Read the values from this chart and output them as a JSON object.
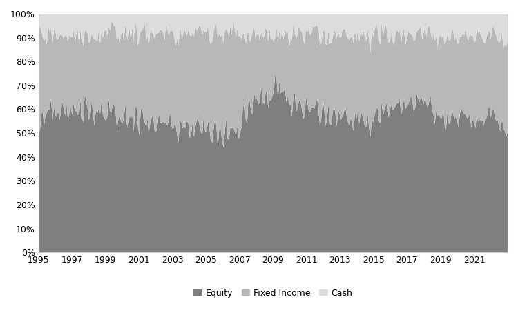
{
  "colors": {
    "equity": "#7f7f7f",
    "fixed_income": "#b8b8b8",
    "cash": "#dcdcdc"
  },
  "legend_labels": [
    "Equity",
    "Fixed Income",
    "Cash"
  ],
  "background_color": "#ffffff",
  "start_year": 1995,
  "equity_data": [
    0.54,
    0.47,
    0.56,
    0.58,
    0.56,
    0.6,
    0.62,
    0.57,
    0.59,
    0.63,
    0.59,
    0.57,
    0.55,
    0.59,
    0.62,
    0.58,
    0.6,
    0.63,
    0.61,
    0.59,
    0.62,
    0.58,
    0.6,
    0.62,
    0.58,
    0.6,
    0.62,
    0.59,
    0.57,
    0.61,
    0.63,
    0.59,
    0.58,
    0.63,
    0.6,
    0.58,
    0.57,
    0.6,
    0.63,
    0.58,
    0.56,
    0.6,
    0.62,
    0.57,
    0.6,
    0.63,
    0.59,
    0.56,
    0.55,
    0.59,
    0.61,
    0.57,
    0.55,
    0.59,
    0.61,
    0.56,
    0.55,
    0.58,
    0.61,
    0.56,
    0.55,
    0.58,
    0.6,
    0.55,
    0.54,
    0.57,
    0.59,
    0.55,
    0.54,
    0.57,
    0.59,
    0.55,
    0.53,
    0.57,
    0.59,
    0.54,
    0.52,
    0.56,
    0.58,
    0.54,
    0.52,
    0.56,
    0.58,
    0.54,
    0.52,
    0.55,
    0.57,
    0.53,
    0.51,
    0.55,
    0.57,
    0.53,
    0.51,
    0.55,
    0.57,
    0.53,
    0.51,
    0.54,
    0.57,
    0.52,
    0.5,
    0.54,
    0.56,
    0.52,
    0.5,
    0.54,
    0.56,
    0.52,
    0.5,
    0.53,
    0.56,
    0.51,
    0.49,
    0.53,
    0.55,
    0.5,
    0.48,
    0.52,
    0.55,
    0.5,
    0.48,
    0.52,
    0.54,
    0.5,
    0.48,
    0.52,
    0.54,
    0.5,
    0.48,
    0.51,
    0.53,
    0.49,
    0.47,
    0.51,
    0.53,
    0.49,
    0.47,
    0.51,
    0.53,
    0.49,
    0.47,
    0.51,
    0.53,
    0.49,
    0.52,
    0.56,
    0.6,
    0.63,
    0.59,
    0.56,
    0.62,
    0.65,
    0.61,
    0.58,
    0.63,
    0.66,
    0.63,
    0.6,
    0.65,
    0.68,
    0.64,
    0.61,
    0.65,
    0.68,
    0.64,
    0.61,
    0.65,
    0.68,
    0.71,
    0.74,
    0.71,
    0.68,
    0.72,
    0.69,
    0.66,
    0.7,
    0.67,
    0.64,
    0.62,
    0.65,
    0.63,
    0.6,
    0.62,
    0.64,
    0.61,
    0.59,
    0.61,
    0.63,
    0.6,
    0.58,
    0.6,
    0.62,
    0.6,
    0.58,
    0.6,
    0.62,
    0.59,
    0.57,
    0.6,
    0.62,
    0.58,
    0.56,
    0.59,
    0.61,
    0.59,
    0.57,
    0.59,
    0.61,
    0.58,
    0.56,
    0.58,
    0.6,
    0.57,
    0.55,
    0.58,
    0.6,
    0.57,
    0.55,
    0.57,
    0.59,
    0.56,
    0.54,
    0.56,
    0.58,
    0.55,
    0.53,
    0.55,
    0.57,
    0.55,
    0.53,
    0.56,
    0.58,
    0.55,
    0.53,
    0.55,
    0.57,
    0.54,
    0.52,
    0.55,
    0.57,
    0.54,
    0.56,
    0.58,
    0.56,
    0.58,
    0.6,
    0.58,
    0.56,
    0.58,
    0.6,
    0.58,
    0.61,
    0.59,
    0.61,
    0.63,
    0.61,
    0.59,
    0.61,
    0.63,
    0.61,
    0.59,
    0.61,
    0.63,
    0.61,
    0.59,
    0.62,
    0.64,
    0.62,
    0.6,
    0.62,
    0.64,
    0.62,
    0.6,
    0.62,
    0.64,
    0.62,
    0.63,
    0.61,
    0.59,
    0.61,
    0.63,
    0.61,
    0.59,
    0.57,
    0.59,
    0.61,
    0.58,
    0.56,
    0.58,
    0.6,
    0.57,
    0.55,
    0.57,
    0.55,
    0.57,
    0.59,
    0.56,
    0.58,
    0.56,
    0.58,
    0.56,
    0.58,
    0.6,
    0.58,
    0.56,
    0.54,
    0.56,
    0.58,
    0.56,
    0.54,
    0.56,
    0.58,
    0.56,
    0.54,
    0.52,
    0.54,
    0.56,
    0.58,
    0.56,
    0.58,
    0.56,
    0.58,
    0.6,
    0.58,
    0.56,
    0.58,
    0.56,
    0.54,
    0.56,
    0.54,
    0.52,
    0.54,
    0.56,
    0.54,
    0.52,
    0.54
  ],
  "fixed_income_data": [
    0.38,
    0.44,
    0.35,
    0.33,
    0.36,
    0.32,
    0.3,
    0.35,
    0.33,
    0.29,
    0.32,
    0.34,
    0.36,
    0.32,
    0.3,
    0.34,
    0.32,
    0.29,
    0.31,
    0.33,
    0.3,
    0.33,
    0.31,
    0.29,
    0.33,
    0.31,
    0.29,
    0.32,
    0.34,
    0.3,
    0.28,
    0.32,
    0.33,
    0.28,
    0.31,
    0.33,
    0.34,
    0.31,
    0.29,
    0.33,
    0.35,
    0.31,
    0.29,
    0.33,
    0.31,
    0.28,
    0.32,
    0.35,
    0.37,
    0.33,
    0.31,
    0.35,
    0.37,
    0.33,
    0.31,
    0.36,
    0.37,
    0.34,
    0.31,
    0.35,
    0.37,
    0.33,
    0.32,
    0.36,
    0.38,
    0.35,
    0.33,
    0.36,
    0.38,
    0.35,
    0.33,
    0.36,
    0.39,
    0.35,
    0.33,
    0.37,
    0.4,
    0.36,
    0.34,
    0.37,
    0.4,
    0.36,
    0.34,
    0.38,
    0.4,
    0.37,
    0.35,
    0.39,
    0.41,
    0.37,
    0.35,
    0.39,
    0.41,
    0.37,
    0.35,
    0.39,
    0.41,
    0.38,
    0.35,
    0.4,
    0.42,
    0.38,
    0.36,
    0.4,
    0.42,
    0.38,
    0.36,
    0.4,
    0.42,
    0.39,
    0.36,
    0.41,
    0.43,
    0.39,
    0.37,
    0.42,
    0.44,
    0.4,
    0.37,
    0.42,
    0.44,
    0.4,
    0.38,
    0.42,
    0.44,
    0.4,
    0.38,
    0.42,
    0.44,
    0.41,
    0.39,
    0.43,
    0.45,
    0.41,
    0.39,
    0.43,
    0.45,
    0.41,
    0.39,
    0.43,
    0.45,
    0.41,
    0.39,
    0.43,
    0.4,
    0.36,
    0.31,
    0.28,
    0.32,
    0.35,
    0.29,
    0.26,
    0.3,
    0.33,
    0.28,
    0.25,
    0.28,
    0.31,
    0.26,
    0.23,
    0.27,
    0.3,
    0.26,
    0.23,
    0.27,
    0.3,
    0.26,
    0.23,
    0.2,
    0.17,
    0.2,
    0.23,
    0.19,
    0.22,
    0.26,
    0.22,
    0.24,
    0.27,
    0.29,
    0.26,
    0.28,
    0.31,
    0.29,
    0.27,
    0.3,
    0.32,
    0.3,
    0.28,
    0.31,
    0.33,
    0.31,
    0.29,
    0.31,
    0.33,
    0.31,
    0.29,
    0.32,
    0.34,
    0.31,
    0.29,
    0.33,
    0.35,
    0.32,
    0.3,
    0.32,
    0.34,
    0.32,
    0.3,
    0.33,
    0.35,
    0.33,
    0.31,
    0.34,
    0.36,
    0.33,
    0.31,
    0.34,
    0.36,
    0.34,
    0.32,
    0.35,
    0.37,
    0.35,
    0.33,
    0.36,
    0.38,
    0.36,
    0.34,
    0.36,
    0.34,
    0.35,
    0.33,
    0.36,
    0.38,
    0.36,
    0.34,
    0.37,
    0.35,
    0.36,
    0.34,
    0.37,
    0.35,
    0.33,
    0.35,
    0.33,
    0.31,
    0.33,
    0.35,
    0.33,
    0.31,
    0.33,
    0.3,
    0.32,
    0.3,
    0.28,
    0.3,
    0.32,
    0.3,
    0.28,
    0.3,
    0.32,
    0.3,
    0.28,
    0.3,
    0.32,
    0.29,
    0.27,
    0.29,
    0.31,
    0.29,
    0.27,
    0.29,
    0.31,
    0.29,
    0.27,
    0.29,
    0.28,
    0.3,
    0.32,
    0.3,
    0.28,
    0.3,
    0.32,
    0.34,
    0.32,
    0.3,
    0.33,
    0.35,
    0.33,
    0.31,
    0.34,
    0.36,
    0.34,
    0.36,
    0.34,
    0.32,
    0.35,
    0.33,
    0.35,
    0.33,
    0.35,
    0.33,
    0.31,
    0.33,
    0.35,
    0.37,
    0.35,
    0.33,
    0.35,
    0.37,
    0.35,
    0.33,
    0.35,
    0.37,
    0.39,
    0.37,
    0.35,
    0.33,
    0.35,
    0.33,
    0.35,
    0.33,
    0.31,
    0.33,
    0.35,
    0.33,
    0.35,
    0.37,
    0.35,
    0.37,
    0.39,
    0.37,
    0.35,
    0.37,
    0.39,
    0.37
  ]
}
